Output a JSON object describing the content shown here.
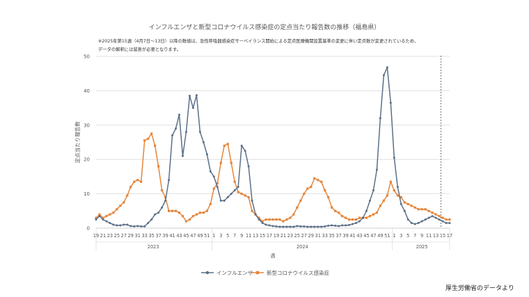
{
  "header": {
    "title": "インフルエンザと新型コロナウイルス感染症の定点当たり報告数の推移（福島県）",
    "note_line1": "※2025年第15週（4月7日〜13日）以降の数値は、急性呼吸器感染症サーベイランス開始による定点医療機関設置基準の変更に伴い定点数が変更されているため、",
    "note_line2": "データの解釈には留意が必要となります。"
  },
  "source_text": "厚生労働省のデータより",
  "colors": {
    "influenza": "#5b6f87",
    "covid": "#e5853a",
    "grid": "#d9d9d9",
    "divider": "#555555"
  },
  "chart_data": {
    "type": "line",
    "title": "インフルエンザと新型コロナウイルス感染症の定点当たり報告数の推移（福島県）",
    "ylabel": "定点当たり報告数",
    "xlabel": "週",
    "ylim": [
      0,
      50
    ],
    "yticks": [
      "0",
      "10",
      "20",
      "30",
      "40",
      "50"
    ],
    "grid": true,
    "legend_position": "bottom",
    "categories": [
      "19",
      "20",
      "21",
      "22",
      "23",
      "24",
      "25",
      "26",
      "27",
      "28",
      "29",
      "30",
      "31",
      "32",
      "33",
      "34",
      "35",
      "36",
      "37",
      "38",
      "39",
      "40",
      "41",
      "42",
      "43",
      "44",
      "45",
      "46",
      "47",
      "48",
      "49",
      "50",
      "51",
      "52",
      "1",
      "2",
      "3",
      "4",
      "5",
      "6",
      "7",
      "8",
      "9",
      "10",
      "11",
      "12",
      "13",
      "14",
      "15",
      "16",
      "17",
      "18",
      "19",
      "20",
      "21",
      "22",
      "23",
      "24",
      "25",
      "26",
      "27",
      "28",
      "29",
      "30",
      "31",
      "32",
      "33",
      "34",
      "35",
      "36",
      "37",
      "38",
      "39",
      "40",
      "41",
      "42",
      "43",
      "44",
      "45",
      "46",
      "47",
      "48",
      "49",
      "50",
      "51",
      "52",
      "1",
      "2",
      "3",
      "4",
      "5",
      "6",
      "7",
      "8",
      "9",
      "10",
      "11",
      "12",
      "13",
      "14",
      "15",
      "16",
      "17"
    ],
    "year_groups": [
      {
        "label": "2023",
        "start": 0,
        "end": 33
      },
      {
        "label": "2024",
        "start": 34,
        "end": 85
      },
      {
        "label": "2025",
        "start": 86,
        "end": 102
      }
    ],
    "divider_index": 100,
    "series": [
      {
        "name": "インフルエンザ",
        "values": [
          2.5,
          3.5,
          2.5,
          2.0,
          1.5,
          1.0,
          0.8,
          0.8,
          1.0,
          1.0,
          0.6,
          0.5,
          0.6,
          0.5,
          0.5,
          1.5,
          2.5,
          4.0,
          4.5,
          6.0,
          8.0,
          14.0,
          27.0,
          29.0,
          33.0,
          21.0,
          28.0,
          38.5,
          35.0,
          38.7,
          28.0,
          25.0,
          21.5,
          16.5,
          15.0,
          12.0,
          8.0,
          8.0,
          9.0,
          10.0,
          11.0,
          12.0,
          24.0,
          22.5,
          18.0,
          8.0,
          4.0,
          2.5,
          1.5,
          1.0,
          0.8,
          0.6,
          0.5,
          0.4,
          0.4,
          0.4,
          0.4,
          0.4,
          0.6,
          0.5,
          0.5,
          0.4,
          0.4,
          0.4,
          0.4,
          0.4,
          0.5,
          0.7,
          0.8,
          0.7,
          0.6,
          0.8,
          0.8,
          0.9,
          1.2,
          1.5,
          2.0,
          3.0,
          5.0,
          8.0,
          11.0,
          17.0,
          32.0,
          44.5,
          46.8,
          36.5,
          20.5,
          12.0,
          7.0,
          5.0,
          2.5,
          1.5,
          1.2,
          1.5,
          2.0,
          2.5,
          3.0,
          3.5,
          3.0,
          2.5,
          2.0,
          1.5,
          1.5
        ]
      },
      {
        "name": "新型コロナウイルス感染症",
        "values": [
          3.0,
          4.0,
          3.0,
          3.5,
          4.0,
          4.5,
          5.5,
          6.5,
          7.5,
          9.5,
          12.0,
          13.5,
          14.0,
          13.5,
          25.5,
          26.0,
          27.5,
          24.0,
          18.0,
          11.0,
          9.0,
          5.0,
          5.0,
          5.0,
          4.5,
          3.5,
          2.0,
          2.5,
          3.5,
          4.0,
          4.5,
          4.5,
          5.0,
          7.0,
          11.5,
          13.0,
          19.0,
          24.0,
          24.5,
          19.0,
          13.5,
          10.5,
          10.0,
          9.5,
          9.0,
          5.0,
          4.0,
          3.0,
          2.0,
          2.5,
          2.5,
          2.5,
          2.5,
          2.5,
          2.0,
          2.5,
          3.0,
          4.0,
          6.0,
          8.0,
          10.0,
          11.5,
          12.0,
          14.5,
          14.0,
          13.5,
          11.0,
          9.0,
          6.0,
          5.0,
          4.5,
          3.5,
          3.0,
          2.5,
          2.5,
          2.5,
          3.0,
          3.0,
          3.0,
          3.5,
          4.0,
          4.5,
          6.5,
          8.0,
          9.5,
          13.5,
          11.0,
          9.5,
          9.0,
          7.5,
          7.0,
          6.5,
          6.0,
          5.5,
          5.5,
          5.5,
          5.0,
          4.5,
          4.0,
          3.5,
          3.0,
          2.5,
          2.5
        ]
      }
    ]
  }
}
